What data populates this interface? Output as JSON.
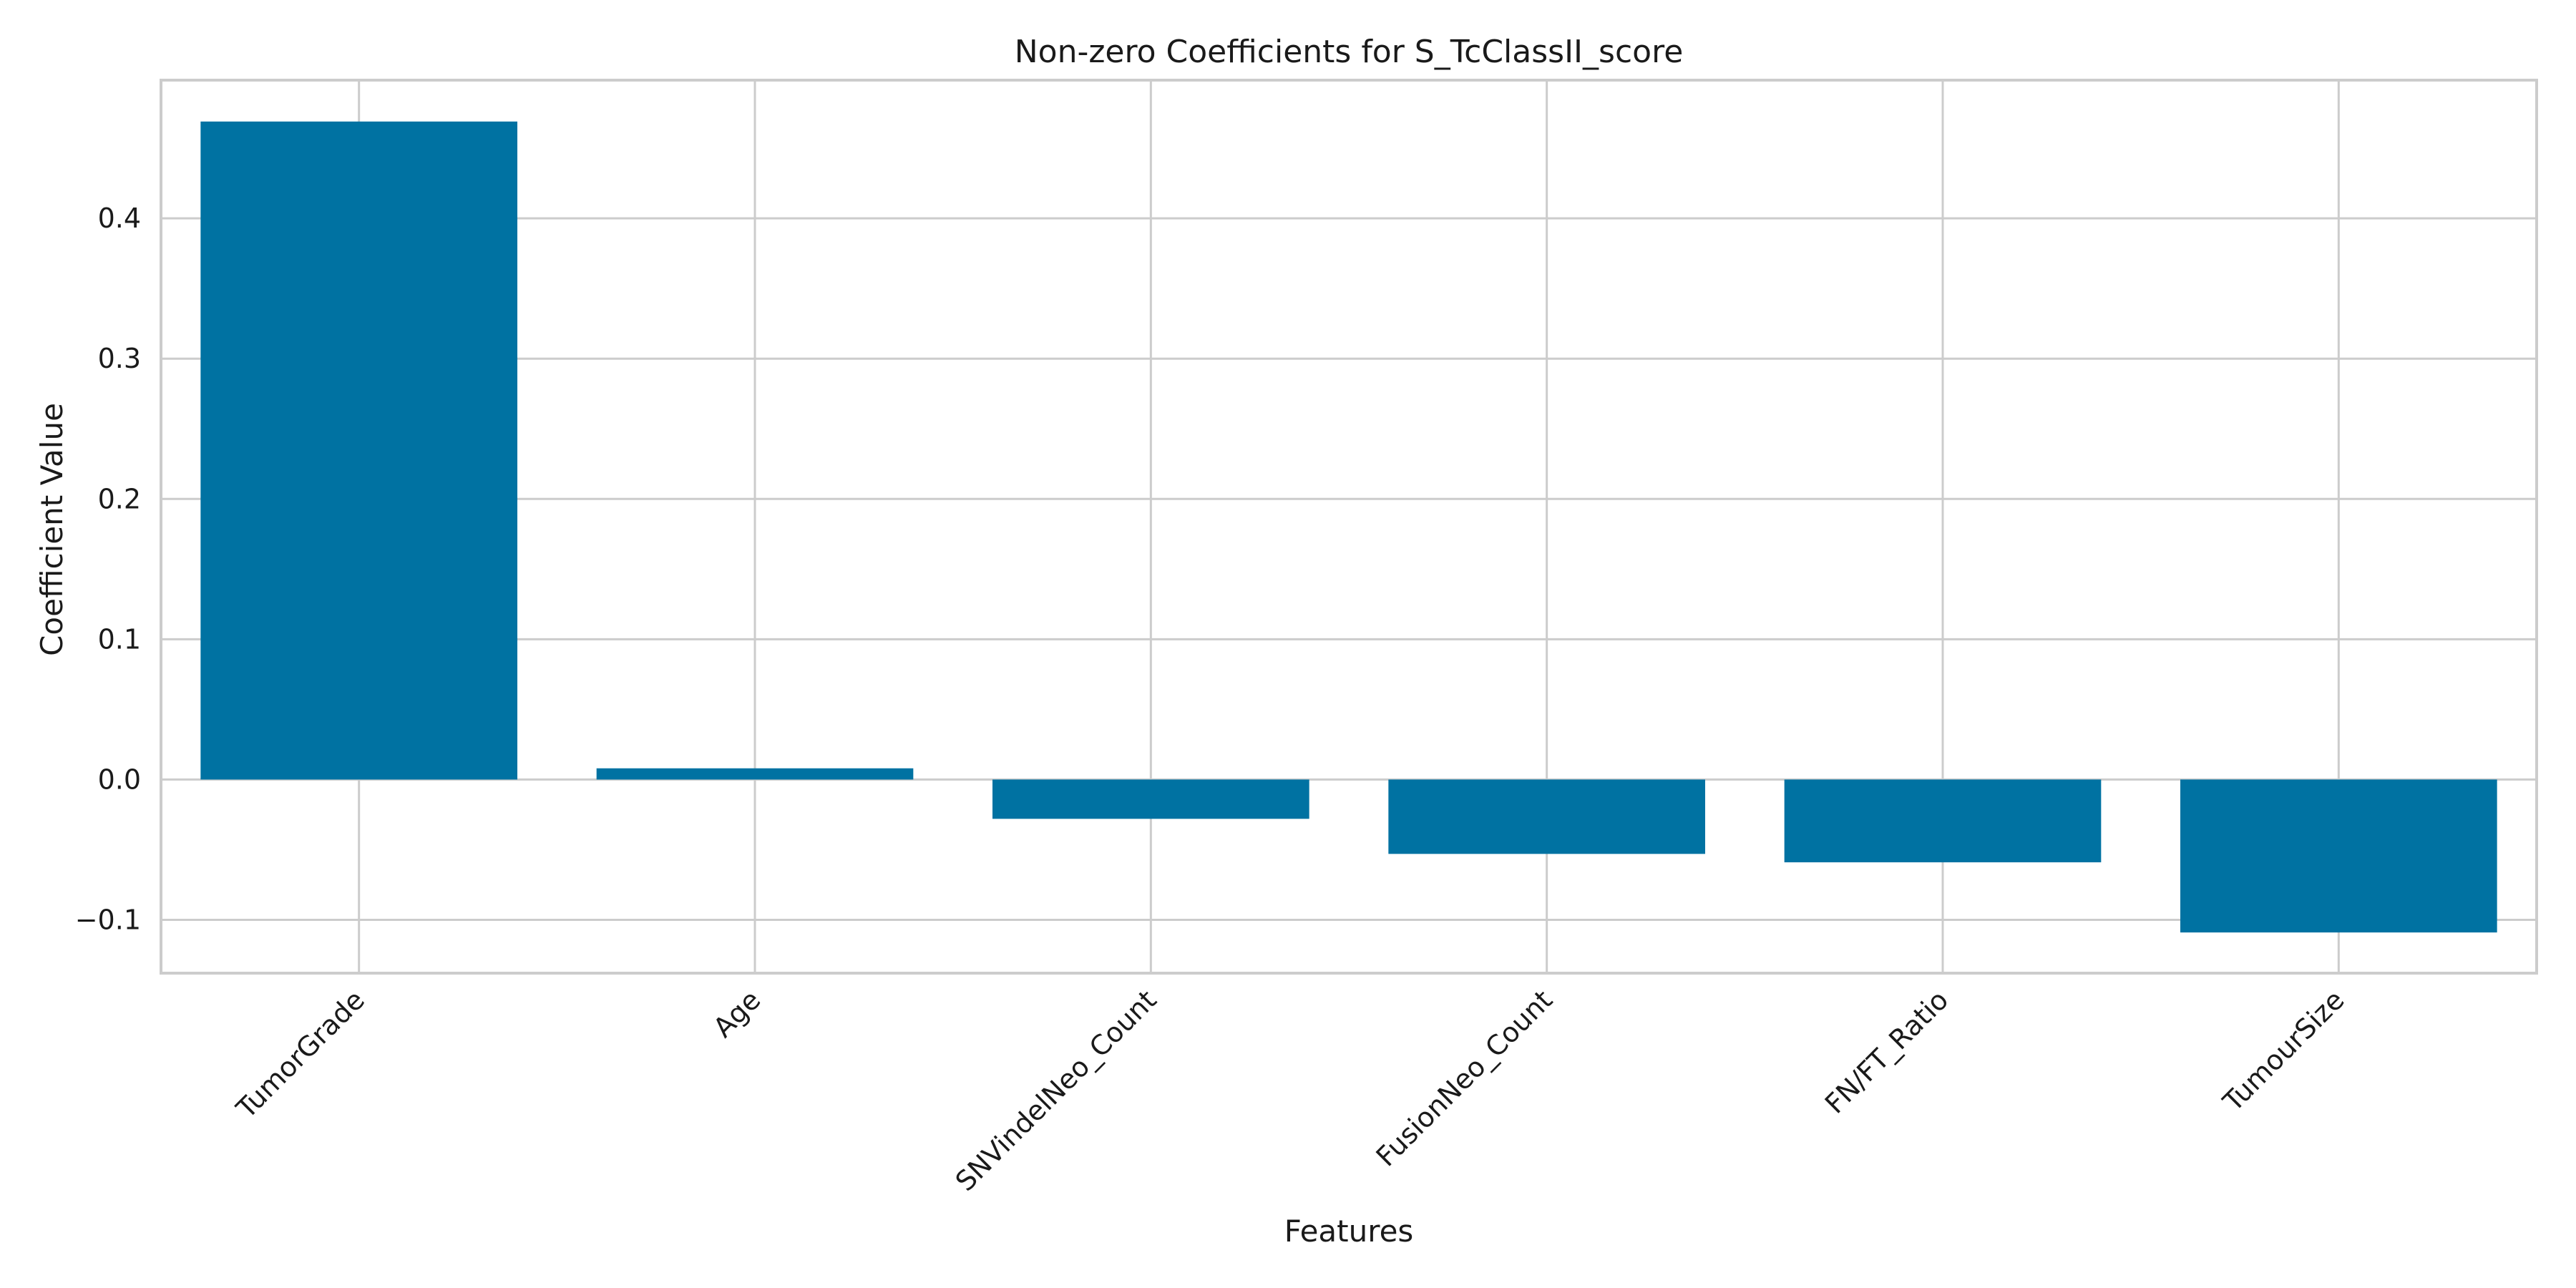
{
  "chart_data": {
    "type": "bar",
    "title": "Non-zero Coefficients for S_TcClassII_score",
    "xlabel": "Features",
    "ylabel": "Coefficient Value",
    "categories": [
      "TumorGrade",
      "Age",
      "SNVindelNeo_Count",
      "FusionNeo_Count",
      "FN/FT_Ratio",
      "TumourSize"
    ],
    "values": [
      0.469,
      0.008,
      -0.028,
      -0.053,
      -0.059,
      -0.109
    ],
    "ylim": [
      -0.138,
      0.4985
    ],
    "yticks": [
      -0.1,
      0.0,
      0.1,
      0.2,
      0.3,
      0.4
    ],
    "ytick_labels": [
      "−0.1",
      "0.0",
      "0.1",
      "0.2",
      "0.3",
      "0.4"
    ],
    "grid": true,
    "legend": "none",
    "bar_color": "#0072a2",
    "grid_color": "#cccccc",
    "background_color": "#ffffff"
  }
}
